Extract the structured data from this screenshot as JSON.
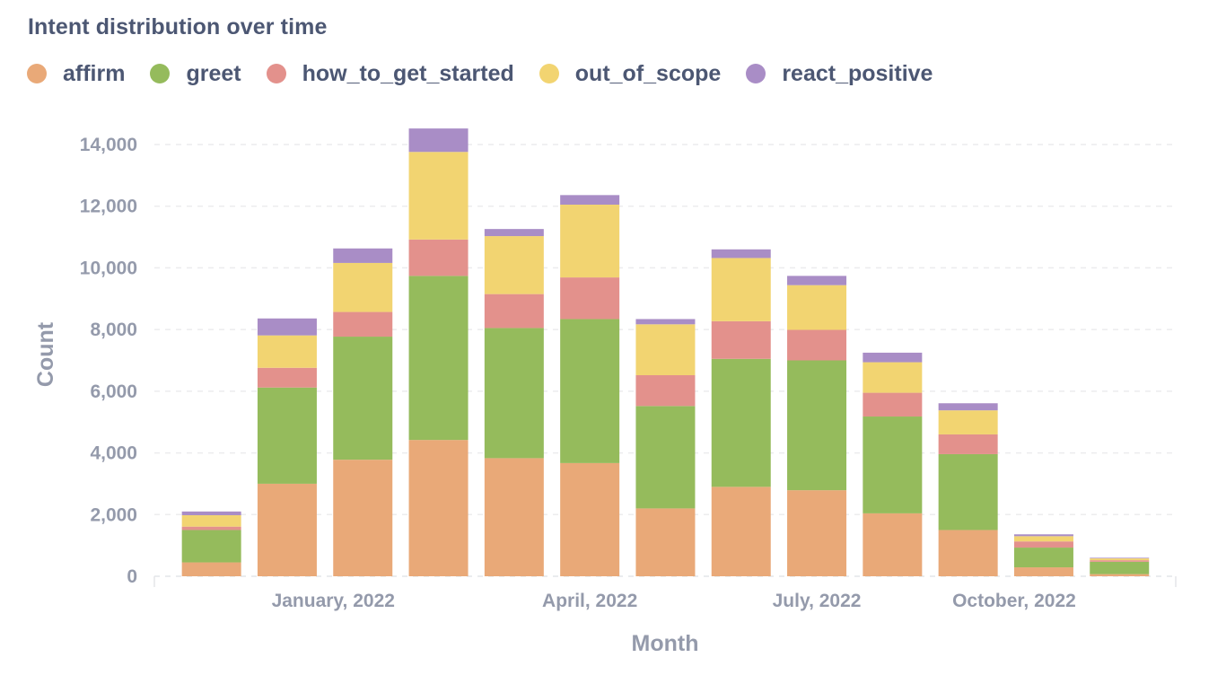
{
  "title": "Intent distribution over time",
  "colors": {
    "affirm": "#e9a978",
    "greet": "#95bb5c",
    "how_to_get_started": "#e3918c",
    "out_of_scope": "#f2d471",
    "react_positive": "#a98dc6"
  },
  "chart_data": {
    "type": "bar",
    "stacked": true,
    "title": "Intent distribution over time",
    "xlabel": "Month",
    "ylabel": "Count",
    "ylim": [
      0,
      14000
    ],
    "grid": "horizontal dashed",
    "legend_position": "top-left",
    "categories": [
      "2021-10",
      "2021-12",
      "2022-01",
      "2022-02",
      "2022-03",
      "2022-04",
      "2022-05",
      "2022-06",
      "2022-07",
      "2022-08",
      "2022-09",
      "2022-10",
      "2022-11"
    ],
    "x_tick_labels": [
      "January, 2022",
      "April, 2022",
      "July, 2022",
      "October, 2022"
    ],
    "y_ticks": [
      0,
      2000,
      4000,
      6000,
      8000,
      10000,
      12000,
      14000
    ],
    "y_tick_labels": [
      "0",
      "2,000",
      "4,000",
      "6,000",
      "8,000",
      "10,000",
      "12,000",
      "14,000"
    ],
    "series": [
      {
        "name": "affirm",
        "values": [
          450,
          3000,
          3780,
          4420,
          3830,
          3670,
          2200,
          2900,
          2790,
          2040,
          1500,
          290,
          70
        ]
      },
      {
        "name": "greet",
        "values": [
          1050,
          3120,
          3990,
          5320,
          4220,
          4670,
          3320,
          4150,
          4210,
          3140,
          2460,
          640,
          400
        ]
      },
      {
        "name": "how_to_get_started",
        "values": [
          110,
          640,
          800,
          1180,
          1100,
          1350,
          1000,
          1220,
          990,
          770,
          640,
          200,
          50
        ]
      },
      {
        "name": "out_of_scope",
        "values": [
          370,
          1050,
          1590,
          2840,
          1880,
          2360,
          1650,
          2050,
          1450,
          990,
          780,
          170,
          60
        ]
      },
      {
        "name": "react_positive",
        "values": [
          120,
          550,
          470,
          760,
          230,
          310,
          170,
          280,
          300,
          310,
          230,
          60,
          20
        ]
      }
    ]
  }
}
